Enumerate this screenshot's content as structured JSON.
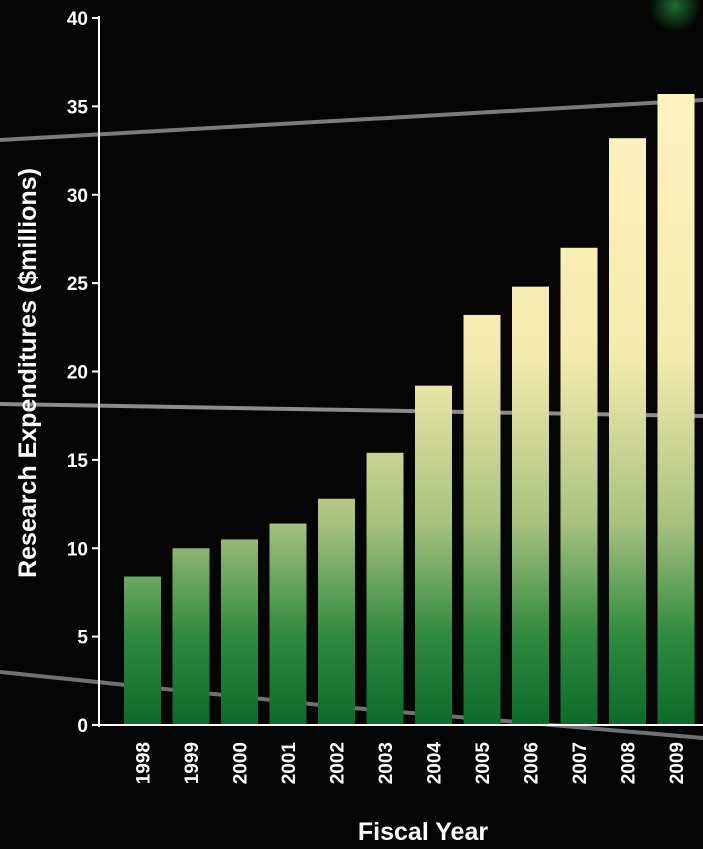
{
  "chart_data": {
    "type": "bar",
    "xlabel": "Fiscal Year",
    "ylabel": "Research Expenditures ($millions)",
    "categories": [
      "1998",
      "1999",
      "2000",
      "2001",
      "2002",
      "2003",
      "2004",
      "2005",
      "2006",
      "2007",
      "2008",
      "2009"
    ],
    "values": [
      8.4,
      10.0,
      10.5,
      11.4,
      12.8,
      15.4,
      19.2,
      23.2,
      24.8,
      27.0,
      33.2,
      35.7
    ],
    "ylim": [
      0,
      40
    ],
    "yticks": [
      "0",
      "5",
      "10",
      "15",
      "20",
      "25",
      "30",
      "35",
      "40"
    ],
    "grid": false,
    "colors": {
      "bar_top": "#FFF3BF",
      "bar_bottom": "#0B6B2A",
      "background": "#050505",
      "axis": "#FFFFFF"
    }
  }
}
